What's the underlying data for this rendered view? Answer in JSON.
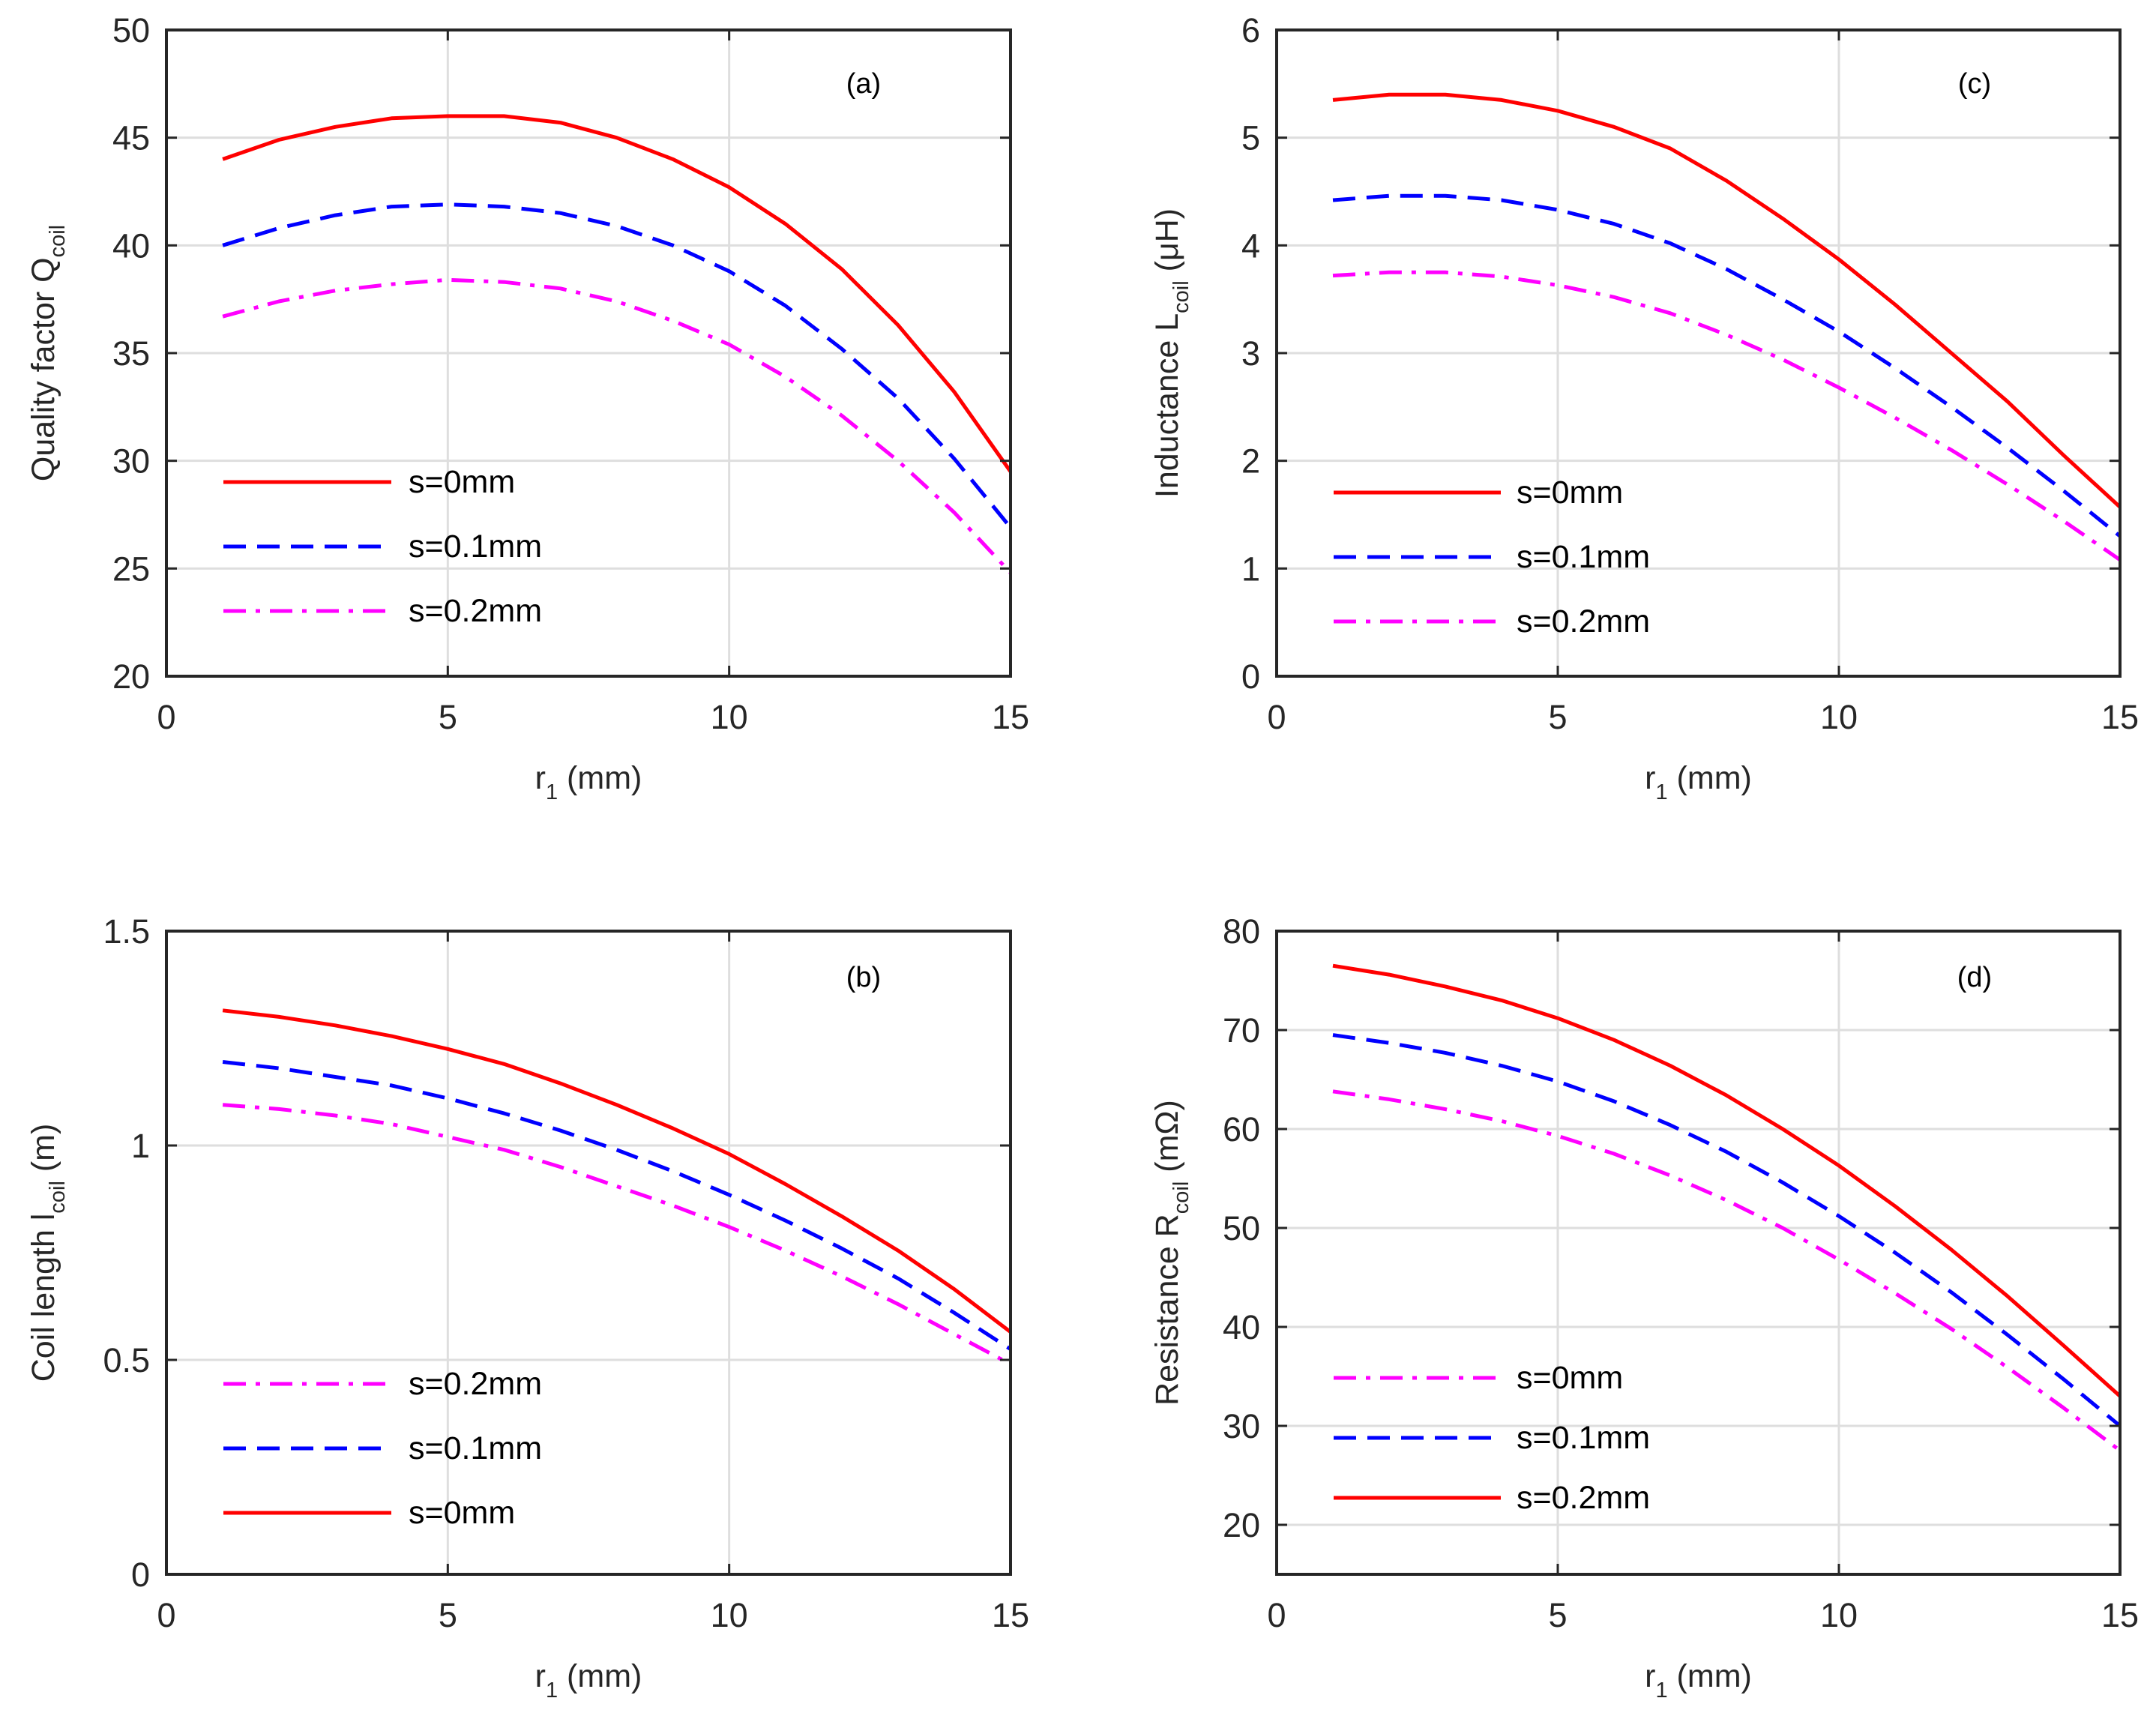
{
  "chart_data": [
    {
      "id": "a",
      "type": "line",
      "panel_label": "(a)",
      "xlabel": {
        "main": "r",
        "sub": "1",
        "rest": " (mm)"
      },
      "ylabel": {
        "main": "Quality factor Q",
        "sub": "coil",
        "rest": ""
      },
      "xlim": [
        0,
        15
      ],
      "ylim": [
        20,
        50
      ],
      "xticks": [
        0,
        5,
        10,
        15
      ],
      "yticks": [
        20,
        25,
        30,
        35,
        40,
        45,
        50
      ],
      "grid": true,
      "legend": {
        "placement": "left"
      },
      "series": [
        {
          "name": "s=0mm",
          "color": "#ff0000",
          "style": "solid",
          "x": [
            1,
            2,
            3,
            4,
            5,
            6,
            7,
            8,
            9,
            10,
            11,
            12,
            13,
            14,
            15
          ],
          "y": [
            44.0,
            44.9,
            45.5,
            45.9,
            46.0,
            46.0,
            45.7,
            45.0,
            44.0,
            42.7,
            41.0,
            38.9,
            36.3,
            33.2,
            29.5
          ]
        },
        {
          "name": "s=0.1mm",
          "color": "#0000ff",
          "style": "dashed",
          "x": [
            1,
            2,
            3,
            4,
            5,
            6,
            7,
            8,
            9,
            10,
            11,
            12,
            13,
            14,
            15
          ],
          "y": [
            40.0,
            40.8,
            41.4,
            41.8,
            41.9,
            41.8,
            41.5,
            40.9,
            40.0,
            38.8,
            37.2,
            35.2,
            32.9,
            30.1,
            26.9
          ]
        },
        {
          "name": "s=0.2mm",
          "color": "#ff00ff",
          "style": "dashdot",
          "x": [
            1,
            2,
            3,
            4,
            5,
            6,
            7,
            8,
            9,
            10,
            11,
            12,
            13,
            14,
            15
          ],
          "y": [
            36.7,
            37.4,
            37.9,
            38.2,
            38.4,
            38.3,
            38.0,
            37.4,
            36.5,
            35.4,
            33.9,
            32.1,
            30.0,
            27.6,
            24.8
          ]
        }
      ]
    },
    {
      "id": "c",
      "type": "line",
      "panel_label": "(c)",
      "xlabel": {
        "main": "r",
        "sub": "1",
        "rest": " (mm)"
      },
      "ylabel": {
        "main": "Inductance L",
        "sub": "coil",
        "rest": "  (μH)"
      },
      "xlim": [
        0,
        15
      ],
      "ylim": [
        0,
        6
      ],
      "xticks": [
        0,
        5,
        10,
        15
      ],
      "yticks": [
        0,
        1,
        2,
        3,
        4,
        5,
        6
      ],
      "grid": true,
      "legend": {
        "placement": "left"
      },
      "series": [
        {
          "name": "s=0mm",
          "color": "#ff0000",
          "style": "solid",
          "x": [
            1,
            2,
            3,
            4,
            5,
            6,
            7,
            8,
            9,
            10,
            11,
            12,
            13,
            14,
            15
          ],
          "y": [
            5.35,
            5.4,
            5.4,
            5.35,
            5.25,
            5.1,
            4.9,
            4.6,
            4.25,
            3.87,
            3.45,
            3.0,
            2.55,
            2.05,
            1.57
          ]
        },
        {
          "name": "s=0.1mm",
          "color": "#0000ff",
          "style": "dashed",
          "x": [
            1,
            2,
            3,
            4,
            5,
            6,
            7,
            8,
            9,
            10,
            11,
            12,
            13,
            14,
            15
          ],
          "y": [
            4.42,
            4.46,
            4.46,
            4.42,
            4.33,
            4.2,
            4.02,
            3.78,
            3.5,
            3.2,
            2.86,
            2.5,
            2.12,
            1.72,
            1.3
          ]
        },
        {
          "name": "s=0.2mm",
          "color": "#ff00ff",
          "style": "dashdot",
          "x": [
            1,
            2,
            3,
            4,
            5,
            6,
            7,
            8,
            9,
            10,
            11,
            12,
            13,
            14,
            15
          ],
          "y": [
            3.72,
            3.75,
            3.75,
            3.71,
            3.63,
            3.52,
            3.37,
            3.17,
            2.94,
            2.68,
            2.4,
            2.1,
            1.78,
            1.44,
            1.08
          ]
        }
      ]
    },
    {
      "id": "b",
      "type": "line",
      "panel_label": "(b)",
      "xlabel": {
        "main": "r",
        "sub": "1",
        "rest": " (mm)"
      },
      "ylabel": {
        "main": "Coil length l",
        "sub": "coil",
        "rest": "  (m)"
      },
      "xlim": [
        0,
        15
      ],
      "ylim": [
        0,
        1.5
      ],
      "xticks": [
        0,
        5,
        10,
        15
      ],
      "yticks": [
        0,
        0.5,
        1,
        1.5
      ],
      "grid": true,
      "legend": {
        "placement": "bottom-left"
      },
      "series": [
        {
          "name": "s=0.2mm",
          "color": "#ff00ff",
          "style": "dashdot",
          "x": [
            1,
            2,
            3,
            4,
            5,
            6,
            7,
            8,
            9,
            10,
            11,
            12,
            13,
            14,
            15
          ],
          "y": [
            1.095,
            1.085,
            1.07,
            1.05,
            1.02,
            0.99,
            0.95,
            0.905,
            0.86,
            0.81,
            0.755,
            0.695,
            0.63,
            0.56,
            0.49
          ]
        },
        {
          "name": "s=0.1mm",
          "color": "#0000ff",
          "style": "dashed",
          "x": [
            1,
            2,
            3,
            4,
            5,
            6,
            7,
            8,
            9,
            10,
            11,
            12,
            13,
            14,
            15
          ],
          "y": [
            1.195,
            1.18,
            1.16,
            1.14,
            1.11,
            1.075,
            1.035,
            0.99,
            0.94,
            0.885,
            0.825,
            0.76,
            0.69,
            0.61,
            0.525
          ]
        },
        {
          "name": "s=0mm",
          "color": "#ff0000",
          "style": "solid",
          "x": [
            1,
            2,
            3,
            4,
            5,
            6,
            7,
            8,
            9,
            10,
            11,
            12,
            13,
            14,
            15
          ],
          "y": [
            1.315,
            1.3,
            1.28,
            1.255,
            1.225,
            1.19,
            1.145,
            1.095,
            1.04,
            0.98,
            0.91,
            0.835,
            0.755,
            0.665,
            0.565
          ]
        }
      ]
    },
    {
      "id": "d",
      "type": "line",
      "panel_label": "(d)",
      "xlabel": {
        "main": "r",
        "sub": "1",
        "rest": " (mm)"
      },
      "ylabel": {
        "main": "Resistance R",
        "sub": "coil",
        "rest": "  (mΩ)"
      },
      "xlim": [
        0,
        15
      ],
      "ylim": [
        15,
        80
      ],
      "xticks": [
        0,
        5,
        10,
        15
      ],
      "yticks": [
        20,
        30,
        40,
        50,
        60,
        70,
        80
      ],
      "grid": true,
      "legend": {
        "placement": "bottom-left"
      },
      "series": [
        {
          "name": "s=0mm",
          "color": "#ff00ff",
          "style": "dashdot",
          "x": [
            1,
            2,
            3,
            4,
            5,
            6,
            7,
            8,
            9,
            10,
            11,
            12,
            13,
            14,
            15
          ],
          "y": [
            63.8,
            63.0,
            62.0,
            60.8,
            59.3,
            57.5,
            55.3,
            52.8,
            50.0,
            46.8,
            43.4,
            39.8,
            35.9,
            31.8,
            27.5
          ]
        },
        {
          "name": "s=0.1mm",
          "color": "#0000ff",
          "style": "dashed",
          "x": [
            1,
            2,
            3,
            4,
            5,
            6,
            7,
            8,
            9,
            10,
            11,
            12,
            13,
            14,
            15
          ],
          "y": [
            69.5,
            68.7,
            67.7,
            66.4,
            64.8,
            62.8,
            60.4,
            57.7,
            54.6,
            51.2,
            47.5,
            43.5,
            39.2,
            34.7,
            30.0
          ]
        },
        {
          "name": "s=0.2mm",
          "color": "#ff0000",
          "style": "solid",
          "x": [
            1,
            2,
            3,
            4,
            5,
            6,
            7,
            8,
            9,
            10,
            11,
            12,
            13,
            14,
            15
          ],
          "y": [
            76.5,
            75.6,
            74.4,
            73.0,
            71.2,
            69.0,
            66.4,
            63.4,
            60.0,
            56.3,
            52.2,
            47.8,
            43.1,
            38.1,
            33.0
          ]
        }
      ]
    }
  ]
}
